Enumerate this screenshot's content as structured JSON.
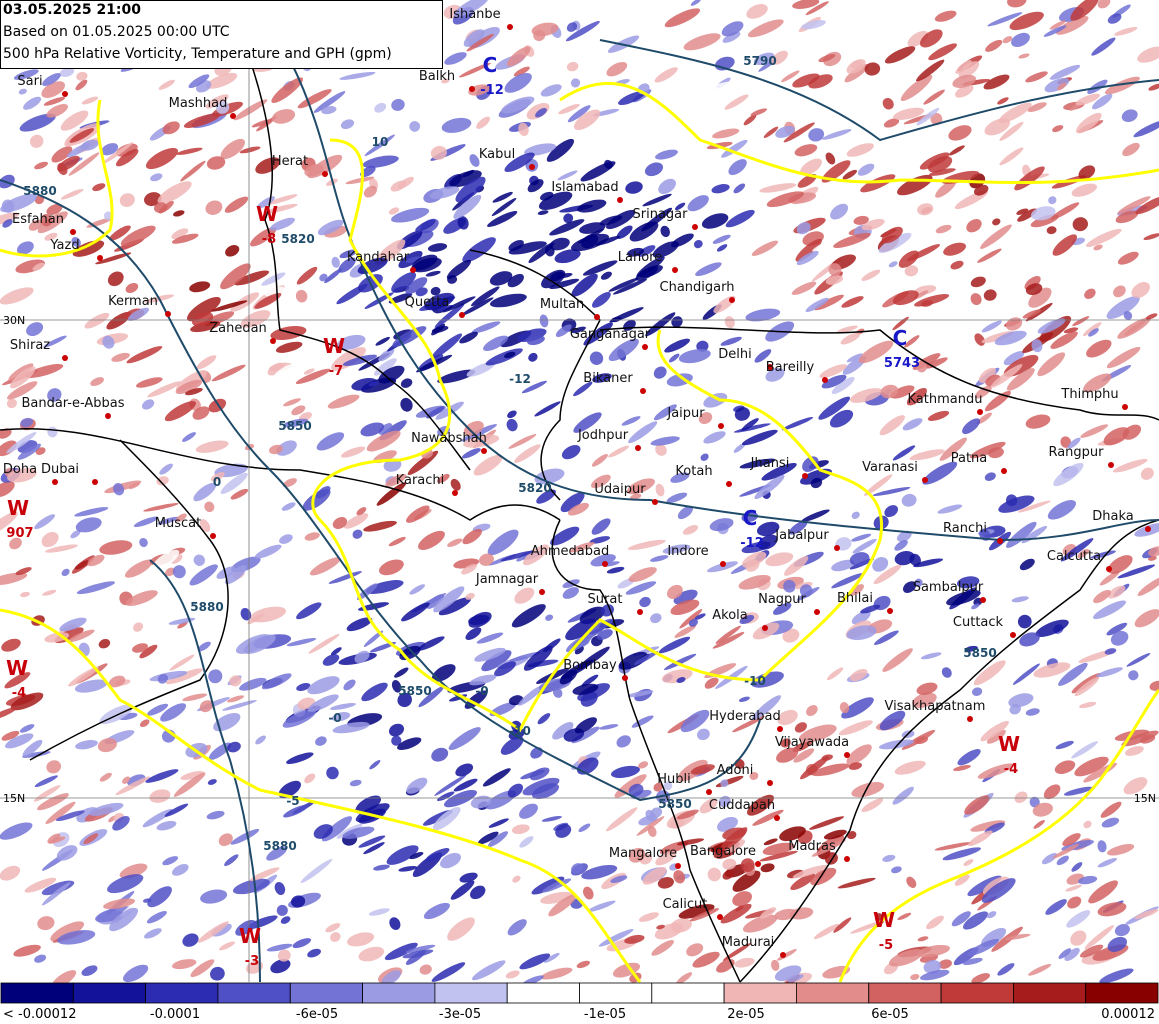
{
  "header": {
    "lines": [
      "03.05.2025 21:00",
      "Based on 01.05.2025 00:00 UTC",
      "500 hPa Relative Vorticity, Temperature and GPH (gpm)"
    ]
  },
  "cities": [
    "Ishanbe",
    "Balkh",
    "Mashhad",
    "Sari",
    "Herat",
    "Esfahan",
    "Yazd",
    "Kerman",
    "Zahedan",
    "Shiraz",
    "Bandar-e-Abbas",
    "Doha",
    "Dubai",
    "Muscat",
    "Kandahar",
    "Quetta",
    "Kabul",
    "Islamabad",
    "Srinagar",
    "Lahore",
    "Multan",
    "Chandigarh",
    "Ganganagar",
    "Delhi",
    "Bareilly",
    "Bikaner",
    "Jaipur",
    "Kathmandu",
    "Thimphu",
    "Nawabshah",
    "Jodhpur",
    "Karachi",
    "Kotah",
    "Jhansi",
    "Varanasi",
    "Patna",
    "Rangpur",
    "Udaipur",
    "Ahmedabad",
    "Indore",
    "Jabalpur",
    "Ranchi",
    "Dhaka",
    "Calcutta",
    "Jamnagar",
    "Surat",
    "Nagpur",
    "Bhilai",
    "Sambalpur",
    "Akola",
    "Cuttack",
    "Bombay",
    "Hyderabad",
    "Visakhapatnam",
    "Vijayawada",
    "Adoni",
    "Hubli",
    "Cuddapah",
    "Madras",
    "Mangalore",
    "Bangalore",
    "Calicut",
    "Madurai"
  ],
  "centers": [
    {
      "letter": "C",
      "value": "-12"
    },
    {
      "letter": "C",
      "value": "-12"
    },
    {
      "letter": "W",
      "value": "-8"
    },
    {
      "letter": "W",
      "value": "-7"
    },
    {
      "letter": "W",
      "value": "907"
    },
    {
      "letter": "C",
      "value": "5743"
    },
    {
      "letter": "W",
      "value": "-4"
    },
    {
      "letter": "W",
      "value": "-4"
    },
    {
      "letter": "W",
      "value": "-5"
    },
    {
      "letter": "W",
      "value": "-3"
    }
  ],
  "contour_labels": [
    "5880",
    "5820",
    "5850",
    "5820",
    "5880",
    "5850",
    "5850",
    "5880",
    "5850",
    "5790",
    "10",
    "-10",
    "-10",
    "-5",
    "0",
    "-0",
    "-0",
    "-12"
  ],
  "grid_labels": [
    "30N",
    "15N",
    "15N"
  ],
  "colorbar": {
    "colors": [
      "#00007a",
      "#12129a",
      "#2c2cb2",
      "#4f4fc6",
      "#7373d6",
      "#9b9be4",
      "#c2c2f0",
      "#ffffff",
      "#ffffff",
      "#ffffff",
      "#f0b6b6",
      "#e28c8c",
      "#d26262",
      "#c03a3a",
      "#a61c1c",
      "#880000"
    ],
    "labels": [
      "< -0.00012",
      "-0.0001",
      "-6e-05",
      "-3e-05",
      "-1e-05",
      "2e-05",
      "6e-05",
      "0.00012"
    ]
  }
}
